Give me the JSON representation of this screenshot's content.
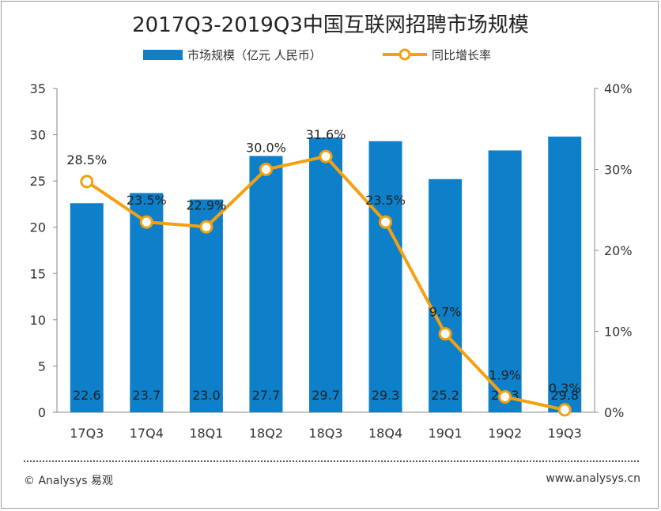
{
  "chart_data": {
    "type": "bar",
    "title": "2017Q3-2019Q3中国互联网招聘市场规模",
    "categories": [
      "17Q3",
      "17Q4",
      "18Q1",
      "18Q2",
      "18Q3",
      "18Q4",
      "19Q1",
      "19Q2",
      "19Q3"
    ],
    "series": [
      {
        "name": "市场规模（亿元 人民币）",
        "type": "bar",
        "axis": "left",
        "values": [
          22.6,
          23.7,
          23.0,
          27.7,
          29.7,
          29.3,
          25.2,
          28.3,
          29.8
        ],
        "labels": [
          "22.6",
          "23.7",
          "23.0",
          "27.7",
          "29.7",
          "29.3",
          "25.2",
          "28.3",
          "29.8"
        ]
      },
      {
        "name": "同比增长率",
        "type": "line",
        "axis": "right",
        "values": [
          28.5,
          23.5,
          22.9,
          30.0,
          31.6,
          23.5,
          9.7,
          1.9,
          0.3
        ],
        "labels": [
          "28.5%",
          "23.5%",
          "22.9%",
          "30.0%",
          "31.6%",
          "23.5%",
          "9.7%",
          "1.9%",
          "0.3%"
        ]
      }
    ],
    "yleft": {
      "min": 0,
      "max": 35,
      "ticks": [
        "0",
        "5",
        "10",
        "15",
        "20",
        "25",
        "30",
        "35"
      ]
    },
    "yright": {
      "min": 0,
      "max": 40,
      "ticks": [
        "0%",
        "10%",
        "20%",
        "30%",
        "40%"
      ]
    },
    "grid": false,
    "legend": "top-center",
    "colors": {
      "bar": "#0d80c9",
      "line": "#f5a00f",
      "marker_fill": "#ffffff",
      "axis": "#888888",
      "text": "#333333"
    }
  },
  "footer": {
    "copyright": "© Analysys 易观",
    "url": "www.analysys.cn"
  }
}
